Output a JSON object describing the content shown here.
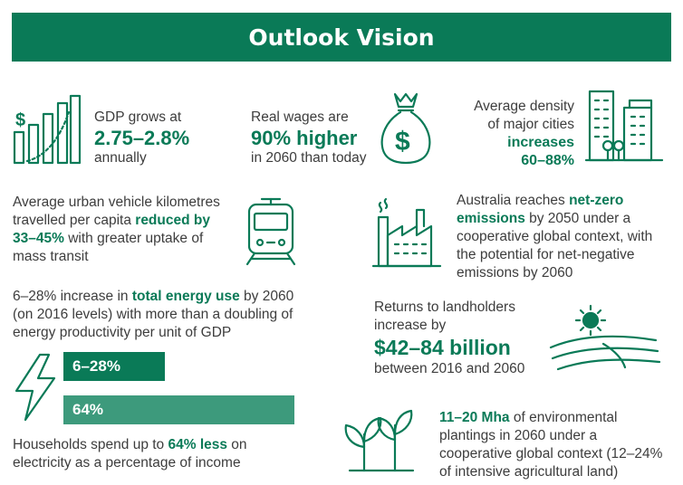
{
  "title": "Outlook Vision",
  "gdp": {
    "pre": "GDP grows at",
    "value": "2.75–2.8%",
    "post": "annually"
  },
  "wages": {
    "pre": "Real wages are",
    "value": "90% higher",
    "post": "in 2060 than today"
  },
  "density": {
    "pre1": "Average density",
    "pre2": "of major cities",
    "value1": "increases",
    "value2": "60–88%"
  },
  "vehicle": {
    "line1": "Average urban vehicle kilometres",
    "line2_pre": "travelled per capita ",
    "line2_bold": "reduced by",
    "line3_bold": "33–45%",
    "line3_post": " with greater uptake of",
    "line4": "mass transit"
  },
  "emissions": {
    "line1_pre": "Australia reaches ",
    "line1_bold": "net-zero",
    "line2_bold": "emissions",
    "line2_post": " by 2050 under a",
    "line3": "cooperative global context, with",
    "line4": "the potential for net-negative",
    "line5": "emissions by 2060"
  },
  "energy": {
    "line1_pre": "6–28% increase in ",
    "line1_bold": "total energy use",
    "line1_post": " by 2060",
    "line2": "(on 2016 levels) with more than a doubling of",
    "line3": "energy productivity per unit of GDP"
  },
  "bars": [
    {
      "label": "6–28%",
      "value": 28
    },
    {
      "label": "64%",
      "value": 64
    }
  ],
  "households": {
    "line1_pre": "Households spend up to ",
    "line1_bold": "64% less",
    "line1_post": " on",
    "line2": "electricity as a percentage of income"
  },
  "landholders": {
    "line1": "Returns to landholders",
    "line2": "increase by",
    "value": "$42–84 billion",
    "post": "between 2016 and 2060"
  },
  "plantings": {
    "line1_bold": "11–20 Mha",
    "line1_post": " of environmental",
    "line2": "plantings in 2060 under a",
    "line3": "cooperative global context (12–24%",
    "line4": "of intensive agricultural land)"
  },
  "icons": [
    "bar-chart-icon",
    "money-bag-icon",
    "city-buildings-icon",
    "train-icon",
    "factory-icon",
    "lightning-icon",
    "farm-sun-icon",
    "seedling-icon"
  ],
  "colors": {
    "primary": "#0a7a57",
    "secondary": "#3d9a7c",
    "text": "#3d3d3d"
  }
}
